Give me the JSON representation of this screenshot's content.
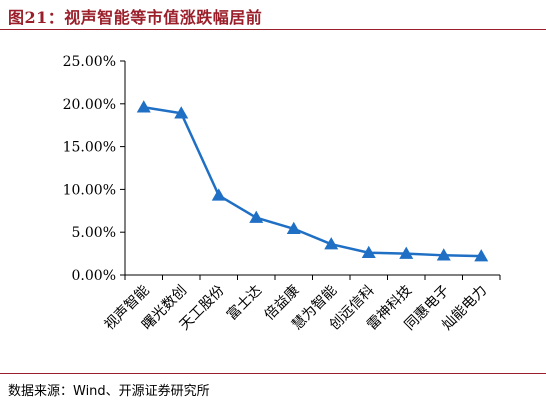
{
  "figure": {
    "title": "图21：视声智能等市值涨跌幅居前",
    "source": "数据来源：Wind、开源证券研究所"
  },
  "colors": {
    "title": "#9a1f2a",
    "series": "#1f6fc5",
    "axis": "#000000"
  },
  "chart_data": {
    "type": "line",
    "title": "图21：视声智能等市值涨跌幅居前",
    "xlabel": "",
    "ylabel": "",
    "categories": [
      "视声智能",
      "曙光数创",
      "天工股份",
      "富士达",
      "倍益康",
      "慧为智能",
      "创远信科",
      "雷神科技",
      "同惠电子",
      "灿能电力"
    ],
    "series": [
      {
        "values": [
          19.6,
          18.9,
          9.3,
          6.7,
          5.4,
          3.6,
          2.6,
          2.5,
          2.3,
          2.2
        ],
        "marker": "triangle"
      }
    ],
    "ylim": [
      0,
      25
    ],
    "yticks": [
      0,
      5,
      10,
      15,
      20,
      25
    ],
    "ytick_labels": [
      "0.00%",
      "5.00%",
      "10.00%",
      "15.00%",
      "20.00%",
      "25.00%"
    ],
    "grid": false,
    "legend": "none"
  }
}
